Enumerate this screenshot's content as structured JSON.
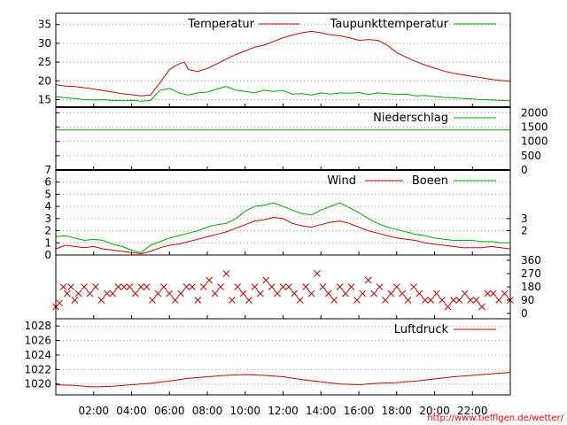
{
  "chart_data": [
    {
      "type": "line",
      "panel": "temperature",
      "ylim": [
        13,
        38
      ],
      "yticks": [
        "15",
        "20",
        "25",
        "30",
        "35"
      ],
      "grid": true,
      "legend_position": "top",
      "series": [
        {
          "name": "Temperatur",
          "color": "#cc0000",
          "x": [
            0,
            0.5,
            1,
            1.5,
            2,
            2.5,
            3,
            3.5,
            4,
            4.5,
            5,
            5.5,
            6,
            6.5,
            6.8,
            7,
            7.5,
            8,
            8.5,
            9,
            9.5,
            10,
            10.5,
            11,
            11.5,
            12,
            12.5,
            13,
            13.5,
            14,
            14.5,
            15,
            15.5,
            16,
            16.5,
            17,
            17.5,
            18,
            18.5,
            19,
            19.5,
            20,
            20.5,
            21,
            21.5,
            22,
            22.5,
            23,
            23.5,
            24
          ],
          "values": [
            19,
            18.6,
            18.5,
            18.2,
            17.8,
            17.4,
            17,
            16.6,
            16.3,
            16,
            16.2,
            19.5,
            23,
            24.5,
            25,
            23,
            22.5,
            23.3,
            24.5,
            25.8,
            27,
            28,
            29,
            29.5,
            30.5,
            31.5,
            32.2,
            32.8,
            33.2,
            32.8,
            32.3,
            32,
            31.5,
            30.8,
            31,
            30.8,
            29.5,
            27.5,
            26.3,
            25.2,
            24.2,
            23.4,
            22.6,
            22,
            21.6,
            21.2,
            20.8,
            20.4,
            20.1,
            19.9
          ]
        },
        {
          "name": "Taupunkttemperatur",
          "color": "#00aa00",
          "x": [
            0,
            0.5,
            1,
            1.5,
            2,
            2.5,
            3,
            3.5,
            4,
            4.5,
            5,
            5.5,
            6,
            6.5,
            7,
            7.5,
            8,
            8.5,
            9,
            9.5,
            10,
            10.5,
            11,
            11.5,
            12,
            12.5,
            13,
            13.5,
            14,
            14.5,
            15,
            15.5,
            16,
            16.5,
            17,
            17.5,
            18,
            18.5,
            19,
            19.5,
            20,
            20.5,
            21,
            21.5,
            22,
            22.5,
            23,
            23.5,
            24
          ],
          "values": [
            15.8,
            15.5,
            15.3,
            15.0,
            14.9,
            15.0,
            14.8,
            14.7,
            14.8,
            14.6,
            14.8,
            17.5,
            18,
            16.8,
            16.2,
            16.8,
            17,
            17.8,
            18.5,
            17.5,
            17.2,
            16.8,
            17.5,
            17.2,
            17.4,
            16.5,
            16.6,
            16.2,
            16.8,
            16.5,
            16.8,
            16.7,
            16.9,
            16.4,
            16.8,
            16.6,
            16.4,
            16.5,
            16,
            16.1,
            15.8,
            15.6,
            15.5,
            15.3,
            15.2,
            15.0,
            14.9,
            14.8,
            14.7
          ]
        }
      ]
    },
    {
      "type": "line",
      "panel": "precipitation",
      "ylim": [
        0,
        2200
      ],
      "yticks": [
        "0",
        "500",
        "1000",
        "1500",
        "2000"
      ],
      "grid": true,
      "series": [
        {
          "name": "Niederschlag",
          "color": "#00aa00",
          "x": [
            0,
            24
          ],
          "values": [
            1400,
            1400
          ]
        }
      ]
    },
    {
      "type": "line",
      "panel": "wind",
      "ylim": [
        0,
        7
      ],
      "yticks": [
        "0",
        "1",
        "2",
        "3",
        "4",
        "5",
        "6",
        "7"
      ],
      "right_ticks": [
        "2",
        "3"
      ],
      "grid": true,
      "series": [
        {
          "name": "Wind",
          "color": "#cc0000",
          "x": [
            0,
            0.5,
            1,
            1.5,
            2,
            2.5,
            3,
            3.5,
            4,
            4.5,
            5,
            5.5,
            6,
            6.5,
            7,
            7.5,
            8,
            8.5,
            9,
            9.5,
            10,
            10.5,
            11,
            11.5,
            12,
            12.5,
            13,
            13.5,
            14,
            14.5,
            15,
            15.5,
            16,
            16.5,
            17,
            17.5,
            18,
            18.5,
            19,
            19.5,
            20,
            20.5,
            21,
            21.5,
            22,
            22.5,
            23,
            23.5,
            24
          ],
          "values": [
            0.5,
            0.8,
            0.7,
            0.6,
            0.7,
            0.5,
            0.4,
            0.3,
            0.2,
            0.1,
            0.3,
            0.6,
            0.8,
            0.9,
            1.1,
            1.3,
            1.5,
            1.7,
            1.9,
            2.2,
            2.5,
            2.8,
            2.9,
            3.1,
            3.0,
            2.6,
            2.4,
            2.3,
            2.5,
            2.7,
            2.8,
            2.6,
            2.3,
            2.0,
            1.8,
            1.6,
            1.4,
            1.3,
            1.2,
            1.0,
            0.9,
            0.8,
            0.7,
            0.6,
            0.6,
            0.6,
            0.7,
            0.6,
            0.5
          ]
        },
        {
          "name": "Boeen",
          "color": "#00aa00",
          "x": [
            0,
            0.5,
            1,
            1.5,
            2,
            2.5,
            3,
            3.5,
            4,
            4.5,
            5,
            5.5,
            6,
            6.5,
            7,
            7.5,
            8,
            8.5,
            9,
            9.5,
            10,
            10.5,
            11,
            11.5,
            12,
            12.5,
            13,
            13.5,
            14,
            14.5,
            15,
            15.5,
            16,
            16.5,
            17,
            17.5,
            18,
            18.5,
            19,
            19.5,
            20,
            20.5,
            21,
            21.5,
            22,
            22.5,
            23,
            23.5,
            24
          ],
          "values": [
            1.5,
            1.6,
            1.4,
            1.2,
            1.3,
            1.2,
            0.9,
            0.7,
            0.4,
            0.2,
            0.8,
            1.1,
            1.4,
            1.6,
            1.8,
            2.0,
            2.3,
            2.5,
            2.6,
            3.0,
            3.6,
            4.0,
            4.1,
            4.3,
            4.0,
            3.7,
            3.4,
            3.3,
            3.7,
            4.0,
            4.3,
            3.9,
            3.5,
            3.0,
            2.6,
            2.3,
            2.1,
            1.9,
            1.7,
            1.6,
            1.4,
            1.3,
            1.2,
            1.2,
            1.2,
            1.1,
            1.1,
            1.0,
            1.0
          ]
        }
      ]
    },
    {
      "type": "scatter",
      "panel": "wind-direction",
      "ylim": [
        0,
        360
      ],
      "right_ticks": [
        "0",
        "90",
        "180",
        "270",
        "360"
      ],
      "series": [
        {
          "name": "",
          "color": "#cc0000",
          "marker": "x",
          "x": [
            0,
            0.2,
            0.4,
            0.6,
            0.8,
            1.0,
            1.2,
            1.5,
            1.8,
            2.1,
            2.4,
            2.7,
            3.0,
            3.3,
            3.6,
            3.9,
            4.2,
            4.5,
            4.8,
            5.1,
            5.4,
            5.7,
            6.0,
            6.3,
            6.6,
            6.9,
            7.2,
            7.5,
            7.8,
            8.1,
            8.4,
            8.7,
            9.0,
            9.3,
            9.6,
            9.9,
            10.2,
            10.5,
            10.8,
            11.1,
            11.4,
            11.7,
            12.0,
            12.3,
            12.6,
            12.9,
            13.2,
            13.5,
            13.8,
            14.1,
            14.4,
            14.7,
            15.0,
            15.3,
            15.6,
            15.9,
            16.2,
            16.5,
            16.8,
            17.1,
            17.4,
            17.7,
            18.0,
            18.3,
            18.6,
            18.9,
            19.2,
            19.5,
            19.8,
            20.1,
            20.4,
            20.7,
            21.0,
            21.3,
            21.6,
            21.9,
            22.2,
            22.5,
            22.8,
            23.1,
            23.4,
            23.7,
            24.0
          ],
          "values": [
            45,
            70,
            180,
            135,
            180,
            90,
            135,
            180,
            135,
            180,
            90,
            135,
            135,
            180,
            180,
            180,
            135,
            180,
            180,
            90,
            135,
            180,
            135,
            90,
            135,
            180,
            180,
            90,
            180,
            225,
            135,
            180,
            270,
            90,
            180,
            135,
            90,
            180,
            135,
            225,
            180,
            135,
            180,
            180,
            135,
            90,
            180,
            135,
            270,
            180,
            135,
            90,
            180,
            135,
            180,
            90,
            135,
            225,
            135,
            180,
            90,
            135,
            180,
            135,
            90,
            180,
            135,
            90,
            90,
            135,
            90,
            45,
            90,
            90,
            135,
            90,
            90,
            45,
            135,
            135,
            90,
            135,
            90
          ]
        }
      ]
    },
    {
      "type": "line",
      "panel": "pressure",
      "ylim": [
        1018.5,
        1029
      ],
      "yticks": [
        "1020",
        "1022",
        "1024",
        "1026",
        "1028"
      ],
      "grid": true,
      "series": [
        {
          "name": "Luftdruck",
          "color": "#cc0000",
          "x": [
            0,
            1,
            2,
            3,
            4,
            5,
            6,
            7,
            8,
            9,
            10,
            11,
            12,
            13,
            14,
            15,
            16,
            17,
            18,
            19,
            20,
            21,
            22,
            23,
            24
          ],
          "values": [
            1019.9,
            1019.8,
            1019.6,
            1019.7,
            1019.9,
            1020.1,
            1020.4,
            1020.8,
            1021.0,
            1021.2,
            1021.3,
            1021.2,
            1021.0,
            1020.6,
            1020.3,
            1020.0,
            1019.9,
            1020.1,
            1020.2,
            1020.4,
            1020.7,
            1021.0,
            1021.2,
            1021.4,
            1021.6
          ]
        }
      ]
    }
  ],
  "x_axis": {
    "range": [
      0,
      24
    ],
    "ticks": [
      2,
      4,
      6,
      8,
      10,
      12,
      14,
      16,
      18,
      20,
      22
    ],
    "labels": [
      "02:00",
      "04:00",
      "06:00",
      "08:00",
      "10:00",
      "12:00",
      "14:00",
      "16:00",
      "18:00",
      "20:00",
      "22:00"
    ]
  },
  "footer": {
    "credit": "http://www.tiefflgen.de/wetter/"
  }
}
